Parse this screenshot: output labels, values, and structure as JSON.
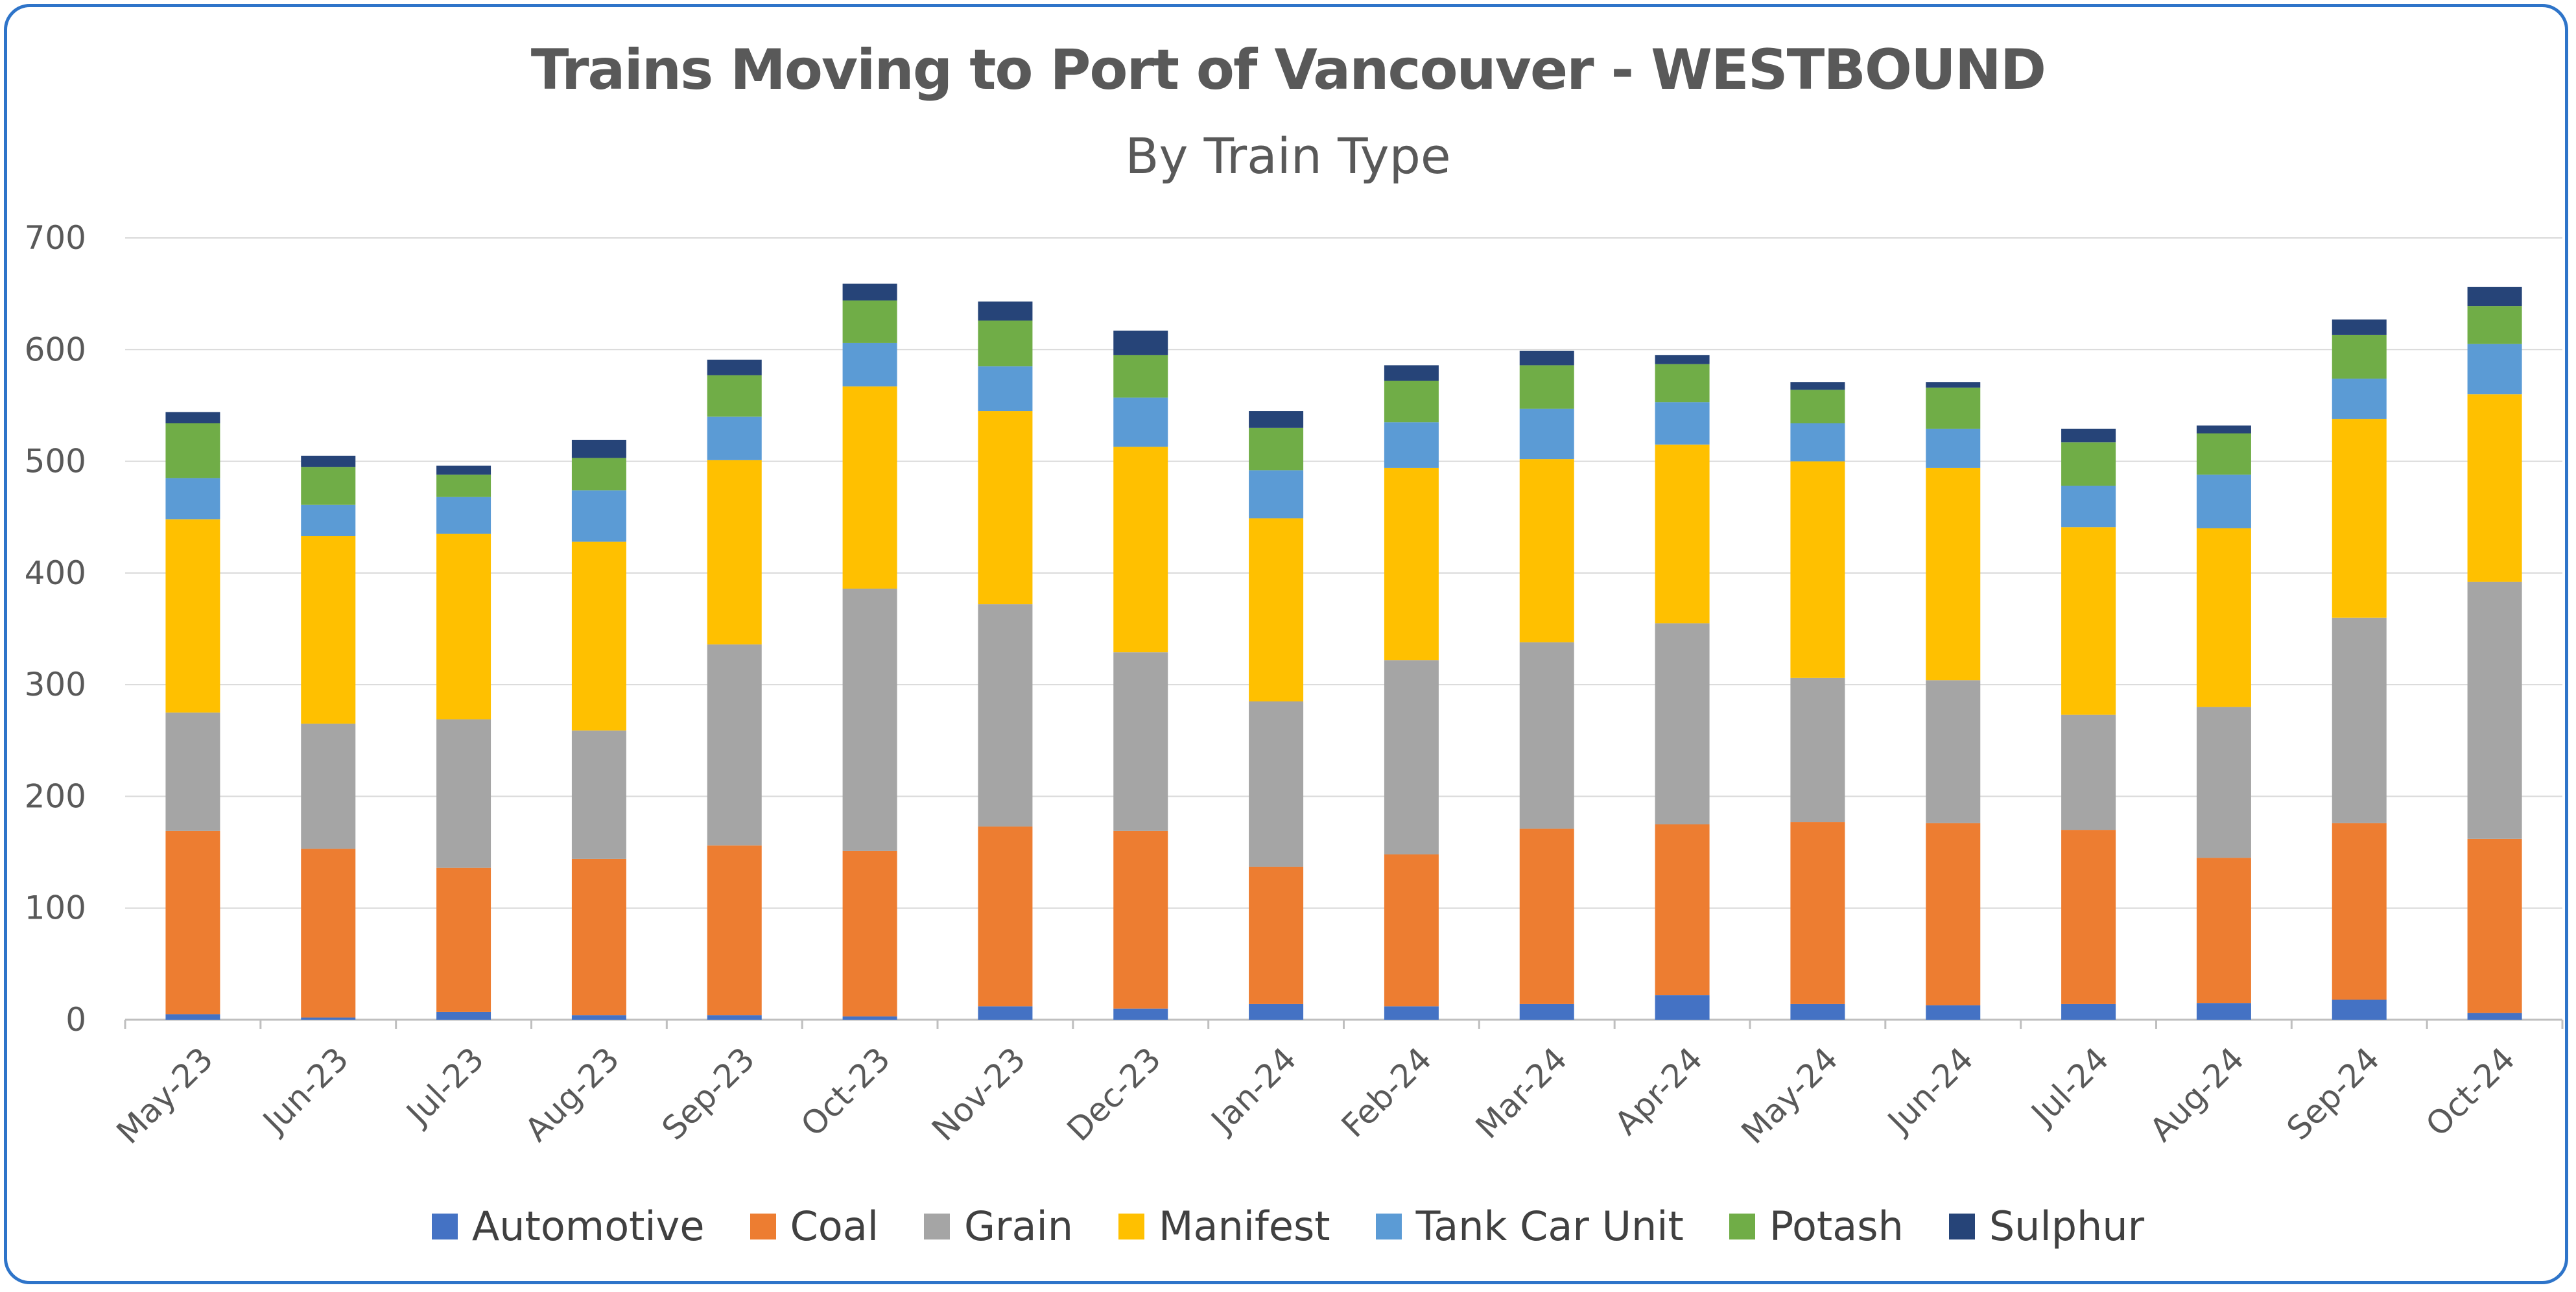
{
  "chart_data": {
    "type": "bar",
    "stacked": true,
    "title": "Trains Moving to Port of Vancouver - WESTBOUND",
    "subtitle": "By Train Type",
    "categories": [
      "May-23",
      "Jun-23",
      "Jul-23",
      "Aug-23",
      "Sep-23",
      "Oct-23",
      "Nov-23",
      "Dec-23",
      "Jan-24",
      "Feb-24",
      "Mar-24",
      "Apr-24",
      "May-24",
      "Jun-24",
      "Jul-24",
      "Aug-24",
      "Sep-24",
      "Oct-24"
    ],
    "ylim": [
      0,
      700
    ],
    "yticks": [
      "0",
      "100",
      "200",
      "300",
      "400",
      "500",
      "600",
      "700"
    ],
    "grid": true,
    "legend_position": "bottom",
    "series": [
      {
        "name": "Automotive",
        "color": "#4472c4",
        "values": [
          5,
          2,
          7,
          4,
          4,
          3,
          12,
          10,
          14,
          12,
          14,
          22,
          14,
          13,
          14,
          15,
          18,
          6
        ]
      },
      {
        "name": "Coal",
        "color": "#ed7d31",
        "values": [
          164,
          151,
          129,
          140,
          152,
          148,
          161,
          159,
          123,
          136,
          157,
          153,
          163,
          163,
          156,
          130,
          158,
          156
        ]
      },
      {
        "name": "Grain",
        "color": "#a5a5a5",
        "values": [
          106,
          112,
          133,
          115,
          180,
          235,
          199,
          160,
          148,
          174,
          167,
          180,
          129,
          128,
          103,
          135,
          184,
          230
        ]
      },
      {
        "name": "Manifest",
        "color": "#ffc000",
        "values": [
          173,
          168,
          166,
          169,
          165,
          181,
          173,
          184,
          164,
          172,
          164,
          160,
          194,
          190,
          168,
          160,
          178,
          168
        ]
      },
      {
        "name": "Tank Car Unit",
        "color": "#5b9bd5",
        "values": [
          37,
          28,
          33,
          46,
          39,
          39,
          40,
          44,
          43,
          41,
          45,
          38,
          34,
          35,
          37,
          48,
          36,
          45
        ]
      },
      {
        "name": "Potash",
        "color": "#70ad47",
        "values": [
          49,
          34,
          20,
          29,
          37,
          38,
          41,
          38,
          38,
          37,
          39,
          34,
          30,
          37,
          39,
          37,
          39,
          34
        ]
      },
      {
        "name": "Sulphur",
        "color": "#264478",
        "values": [
          10,
          10,
          8,
          16,
          14,
          15,
          17,
          22,
          15,
          14,
          13,
          8,
          7,
          5,
          12,
          7,
          14,
          17
        ]
      }
    ]
  }
}
